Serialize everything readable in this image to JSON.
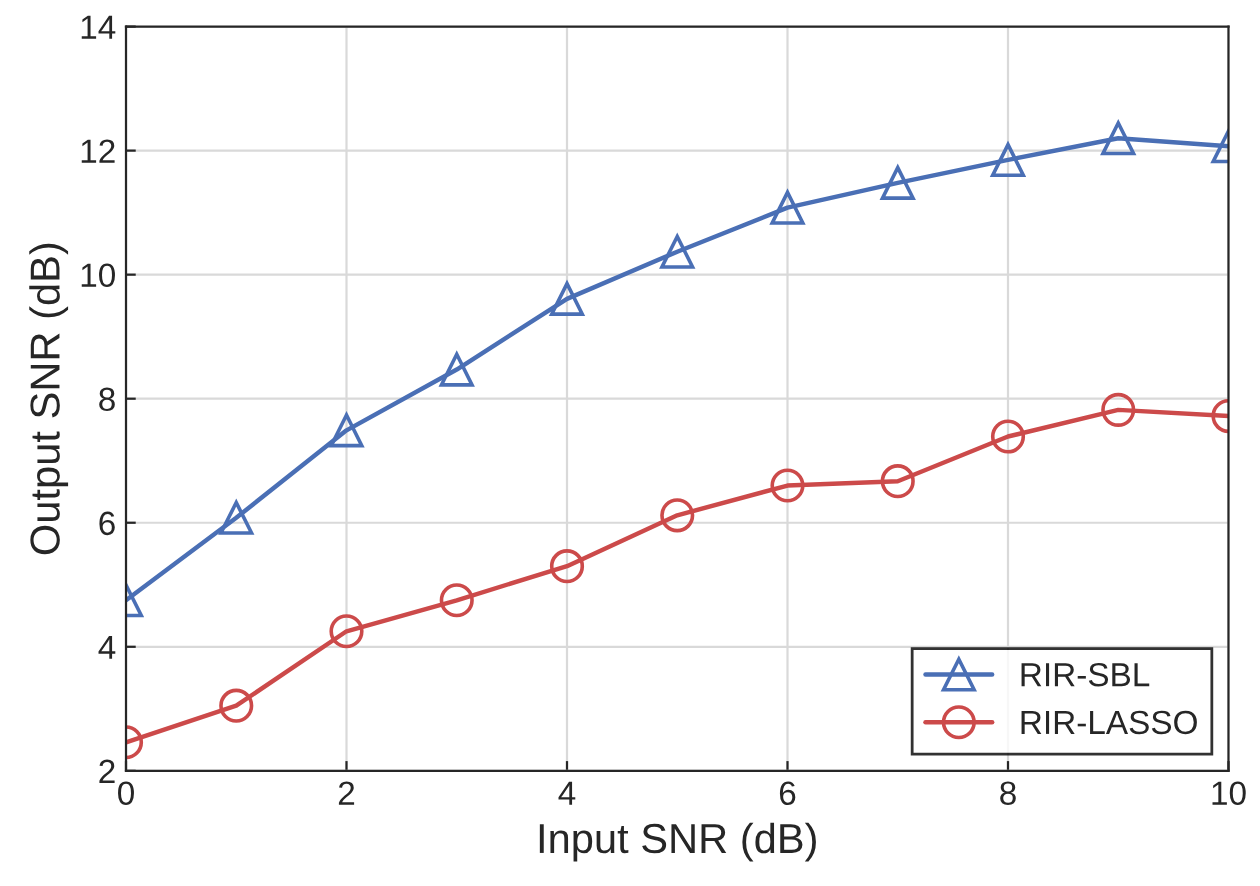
{
  "chart_data": {
    "type": "line",
    "xlabel": "Input SNR (dB)",
    "ylabel": "Output SNR (dB)",
    "x": [
      0,
      1,
      2,
      3,
      4,
      5,
      6,
      7,
      8,
      9,
      10
    ],
    "series": [
      {
        "name": "RIR-SBL",
        "color": "#4a6fb5",
        "marker": "triangle",
        "values": [
          4.75,
          6.08,
          7.49,
          8.47,
          9.61,
          10.37,
          11.08,
          11.48,
          11.85,
          12.2,
          12.07
        ]
      },
      {
        "name": "RIR-LASSO",
        "color": "#cc4a4a",
        "marker": "circle",
        "values": [
          2.46,
          3.05,
          4.25,
          4.75,
          5.3,
          6.12,
          6.6,
          6.67,
          7.39,
          7.82,
          7.72
        ]
      }
    ],
    "xlim": [
      0,
      10
    ],
    "xticks": [
      0,
      2,
      4,
      6,
      8,
      10
    ],
    "ylim": [
      2,
      14
    ],
    "yticks": [
      2,
      4,
      6,
      8,
      10,
      12,
      14
    ],
    "grid": true,
    "legend": "bottom right",
    "line_style": "solid"
  }
}
